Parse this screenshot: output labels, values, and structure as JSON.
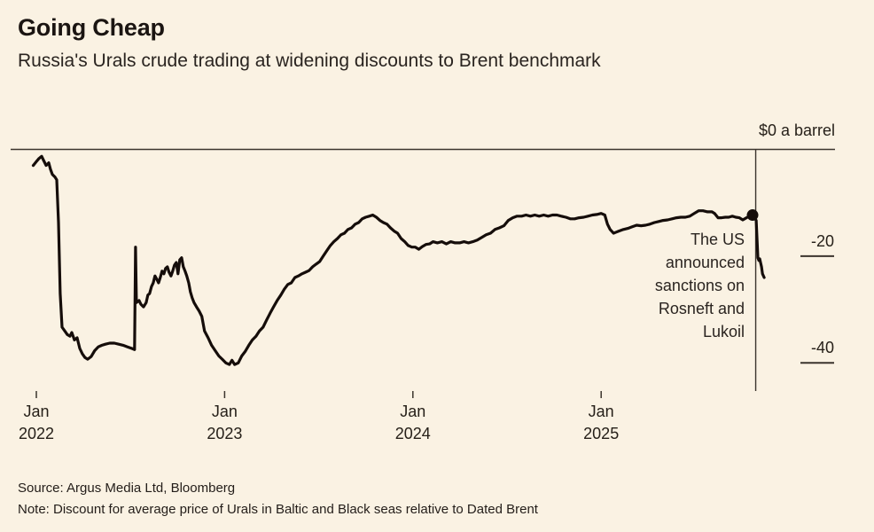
{
  "header": {
    "title": "Going Cheap",
    "subtitle": "Russia's Urals crude trading at widening discounts to Brent benchmark"
  },
  "footer": {
    "source": "Source: Argus Media Ltd, Bloomberg",
    "note": "Note: Discount for average price of Urals in Baltic and Black seas relative to Dated Brent"
  },
  "colors": {
    "background": "#faf2e3",
    "line": "#150d0a",
    "axis": "#3b342d",
    "text": "#262019"
  },
  "chart_data": {
    "type": "line",
    "title": "Going Cheap",
    "xlabel": "",
    "ylabel": "$ a barrel",
    "x_unit": "months since Jan 2022",
    "ylim": [
      -45,
      0
    ],
    "grid": false,
    "legend_position": "none",
    "zero_label": "$0 a barrel",
    "y_ticks": [
      {
        "value": -20,
        "label": "-20"
      },
      {
        "value": -40,
        "label": "-40"
      }
    ],
    "x_ticks": [
      {
        "m": 0,
        "month": "Jan",
        "year": "2022"
      },
      {
        "m": 12,
        "month": "Jan",
        "year": "2023"
      },
      {
        "m": 24,
        "month": "Jan",
        "year": "2024"
      },
      {
        "m": 36,
        "month": "Jan",
        "year": "2025"
      }
    ],
    "annotation": {
      "lines": [
        "The US",
        "announced",
        "sanctions on",
        "Rosneft and",
        "Lukoil"
      ],
      "event_x": 45.85
    },
    "marker": {
      "x": 45.65,
      "y": -12.3
    },
    "series": [
      {
        "name": "Urals discount to Dated Brent, $ a barrel",
        "points": [
          [
            -0.2,
            -3.0
          ],
          [
            0,
            -2.3
          ],
          [
            0.17,
            -1.7
          ],
          [
            0.34,
            -1.3
          ],
          [
            0.45,
            -2.0
          ],
          [
            0.62,
            -3.0
          ],
          [
            0.79,
            -2.5
          ],
          [
            0.9,
            -3.7
          ],
          [
            1.02,
            -4.7
          ],
          [
            1.19,
            -5.2
          ],
          [
            1.3,
            -5.7
          ],
          [
            1.41,
            -13.7
          ],
          [
            1.52,
            -27.0
          ],
          [
            1.64,
            -33.3
          ],
          [
            1.81,
            -34.0
          ],
          [
            1.98,
            -34.7
          ],
          [
            2.14,
            -35.0
          ],
          [
            2.26,
            -34.3
          ],
          [
            2.43,
            -35.7
          ],
          [
            2.6,
            -35.3
          ],
          [
            2.77,
            -37.3
          ],
          [
            2.93,
            -38.3
          ],
          [
            3.1,
            -39.0
          ],
          [
            3.27,
            -39.3
          ],
          [
            3.5,
            -38.8
          ],
          [
            3.72,
            -37.7
          ],
          [
            3.95,
            -37.0
          ],
          [
            4.18,
            -36.7
          ],
          [
            4.4,
            -36.5
          ],
          [
            4.68,
            -36.3
          ],
          [
            4.97,
            -36.3
          ],
          [
            5.25,
            -36.5
          ],
          [
            5.53,
            -36.7
          ],
          [
            5.81,
            -37.0
          ],
          [
            6.09,
            -37.3
          ],
          [
            6.26,
            -37.5
          ],
          [
            6.32,
            -18.3
          ],
          [
            6.38,
            -28.7
          ],
          [
            6.55,
            -28.3
          ],
          [
            6.66,
            -29.0
          ],
          [
            6.83,
            -29.5
          ],
          [
            7.0,
            -28.7
          ],
          [
            7.11,
            -27.3
          ],
          [
            7.22,
            -27.0
          ],
          [
            7.34,
            -25.7
          ],
          [
            7.45,
            -25.0
          ],
          [
            7.56,
            -23.7
          ],
          [
            7.67,
            -24.3
          ],
          [
            7.79,
            -25.0
          ],
          [
            7.9,
            -24.0
          ],
          [
            8.01,
            -22.8
          ],
          [
            8.13,
            -23.3
          ],
          [
            8.24,
            -22.3
          ],
          [
            8.35,
            -22.0
          ],
          [
            8.46,
            -23.0
          ],
          [
            8.58,
            -23.7
          ],
          [
            8.69,
            -22.8
          ],
          [
            8.8,
            -21.7
          ],
          [
            8.92,
            -21.2
          ],
          [
            9.03,
            -23.3
          ],
          [
            9.14,
            -20.7
          ],
          [
            9.26,
            -20.3
          ],
          [
            9.37,
            -22.0
          ],
          [
            9.48,
            -22.8
          ],
          [
            9.59,
            -23.7
          ],
          [
            9.71,
            -25.0
          ],
          [
            9.82,
            -26.7
          ],
          [
            9.93,
            -27.8
          ],
          [
            10.05,
            -28.7
          ],
          [
            10.21,
            -29.5
          ],
          [
            10.38,
            -30.3
          ],
          [
            10.55,
            -31.3
          ],
          [
            10.72,
            -34.0
          ],
          [
            10.95,
            -35.3
          ],
          [
            11.17,
            -36.7
          ],
          [
            11.4,
            -37.7
          ],
          [
            11.63,
            -38.7
          ],
          [
            11.85,
            -39.3
          ],
          [
            12.08,
            -40.0
          ],
          [
            12.3,
            -40.3
          ],
          [
            12.47,
            -39.5
          ],
          [
            12.64,
            -40.3
          ],
          [
            12.87,
            -40.0
          ],
          [
            13.09,
            -38.7
          ],
          [
            13.32,
            -37.8
          ],
          [
            13.54,
            -36.7
          ],
          [
            13.77,
            -35.7
          ],
          [
            14.0,
            -35.0
          ],
          [
            14.22,
            -34.0
          ],
          [
            14.45,
            -33.3
          ],
          [
            14.67,
            -32.0
          ],
          [
            14.9,
            -30.7
          ],
          [
            15.12,
            -29.5
          ],
          [
            15.35,
            -28.3
          ],
          [
            15.58,
            -27.3
          ],
          [
            15.8,
            -26.2
          ],
          [
            16.03,
            -25.3
          ],
          [
            16.25,
            -25.0
          ],
          [
            16.48,
            -24.0
          ],
          [
            16.7,
            -23.7
          ],
          [
            16.93,
            -23.3
          ],
          [
            17.16,
            -23.0
          ],
          [
            17.38,
            -22.7
          ],
          [
            17.61,
            -22.0
          ],
          [
            17.83,
            -21.5
          ],
          [
            18.06,
            -21.0
          ],
          [
            18.28,
            -20.0
          ],
          [
            18.51,
            -19.0
          ],
          [
            18.74,
            -18.0
          ],
          [
            18.96,
            -17.3
          ],
          [
            19.19,
            -16.7
          ],
          [
            19.41,
            -16.0
          ],
          [
            19.64,
            -15.7
          ],
          [
            19.86,
            -15.0
          ],
          [
            20.09,
            -14.7
          ],
          [
            20.32,
            -14.0
          ],
          [
            20.54,
            -13.7
          ],
          [
            20.77,
            -13.0
          ],
          [
            20.99,
            -12.7
          ],
          [
            21.22,
            -12.5
          ],
          [
            21.44,
            -12.3
          ],
          [
            21.67,
            -12.7
          ],
          [
            21.9,
            -13.3
          ],
          [
            22.12,
            -13.7
          ],
          [
            22.35,
            -14.0
          ],
          [
            22.57,
            -14.7
          ],
          [
            22.8,
            -15.3
          ],
          [
            23.02,
            -15.7
          ],
          [
            23.25,
            -16.7
          ],
          [
            23.48,
            -17.3
          ],
          [
            23.7,
            -18.0
          ],
          [
            23.93,
            -18.3
          ],
          [
            24.15,
            -18.3
          ],
          [
            24.38,
            -18.7
          ],
          [
            24.6,
            -18.2
          ],
          [
            24.83,
            -17.8
          ],
          [
            25.06,
            -17.7
          ],
          [
            25.28,
            -17.3
          ],
          [
            25.56,
            -17.5
          ],
          [
            25.85,
            -17.3
          ],
          [
            26.13,
            -17.7
          ],
          [
            26.41,
            -17.3
          ],
          [
            26.69,
            -17.5
          ],
          [
            26.98,
            -17.5
          ],
          [
            27.26,
            -17.3
          ],
          [
            27.54,
            -17.5
          ],
          [
            27.82,
            -17.3
          ],
          [
            28.1,
            -17.0
          ],
          [
            28.39,
            -16.5
          ],
          [
            28.67,
            -16.0
          ],
          [
            28.95,
            -15.7
          ],
          [
            29.23,
            -15.0
          ],
          [
            29.51,
            -14.7
          ],
          [
            29.8,
            -14.3
          ],
          [
            30.08,
            -13.3
          ],
          [
            30.36,
            -12.8
          ],
          [
            30.64,
            -12.5
          ],
          [
            30.93,
            -12.5
          ],
          [
            31.21,
            -12.3
          ],
          [
            31.49,
            -12.5
          ],
          [
            31.77,
            -12.3
          ],
          [
            32.05,
            -12.5
          ],
          [
            32.34,
            -12.3
          ],
          [
            32.62,
            -12.5
          ],
          [
            32.9,
            -12.3
          ],
          [
            33.18,
            -12.3
          ],
          [
            33.46,
            -12.5
          ],
          [
            33.75,
            -12.7
          ],
          [
            34.03,
            -13.0
          ],
          [
            34.31,
            -13.0
          ],
          [
            34.59,
            -12.8
          ],
          [
            34.88,
            -12.7
          ],
          [
            35.16,
            -12.5
          ],
          [
            35.44,
            -12.3
          ],
          [
            35.72,
            -12.2
          ],
          [
            36.0,
            -12.0
          ],
          [
            36.23,
            -12.3
          ],
          [
            36.4,
            -14.0
          ],
          [
            36.57,
            -15.0
          ],
          [
            36.79,
            -15.7
          ],
          [
            36.96,
            -15.5
          ],
          [
            37.13,
            -15.3
          ],
          [
            37.42,
            -15.0
          ],
          [
            37.7,
            -14.8
          ],
          [
            37.98,
            -14.5
          ],
          [
            38.26,
            -14.2
          ],
          [
            38.54,
            -14.3
          ],
          [
            38.83,
            -14.2
          ],
          [
            39.11,
            -14.0
          ],
          [
            39.39,
            -13.7
          ],
          [
            39.67,
            -13.5
          ],
          [
            39.95,
            -13.3
          ],
          [
            40.24,
            -13.2
          ],
          [
            40.52,
            -13.0
          ],
          [
            40.8,
            -12.8
          ],
          [
            41.08,
            -12.7
          ],
          [
            41.37,
            -12.7
          ],
          [
            41.65,
            -12.5
          ],
          [
            41.93,
            -12.0
          ],
          [
            42.21,
            -11.5
          ],
          [
            42.49,
            -11.5
          ],
          [
            42.78,
            -11.7
          ],
          [
            43.06,
            -11.7
          ],
          [
            43.23,
            -12.0
          ],
          [
            43.45,
            -12.8
          ],
          [
            43.68,
            -12.8
          ],
          [
            43.91,
            -12.7
          ],
          [
            44.13,
            -12.7
          ],
          [
            44.36,
            -12.5
          ],
          [
            44.58,
            -12.7
          ],
          [
            44.81,
            -12.8
          ],
          [
            45.03,
            -13.2
          ],
          [
            45.26,
            -12.8
          ],
          [
            45.48,
            -12.5
          ],
          [
            45.65,
            -12.3
          ],
          [
            45.77,
            -12.7
          ],
          [
            45.88,
            -13.3
          ],
          [
            45.94,
            -17.0
          ],
          [
            45.99,
            -20.3
          ],
          [
            46.05,
            -20.8
          ],
          [
            46.11,
            -20.5
          ],
          [
            46.16,
            -21.2
          ],
          [
            46.22,
            -22.0
          ],
          [
            46.28,
            -23.3
          ],
          [
            46.39,
            -24.0
          ]
        ]
      }
    ]
  }
}
